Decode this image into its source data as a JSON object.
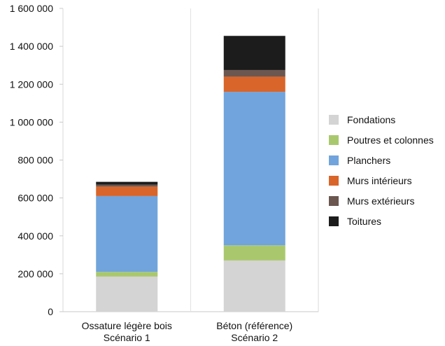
{
  "chart_data": {
    "type": "bar",
    "stacked": true,
    "title": "",
    "xlabel": "",
    "ylabel": "",
    "categories": [
      [
        "Ossature légère bois",
        "Scénario 1"
      ],
      [
        "Béton (référence)",
        "Scénario 2"
      ]
    ],
    "y_ticks": [
      {
        "value": 0,
        "label": "0"
      },
      {
        "value": 200000,
        "label": "200 000"
      },
      {
        "value": 400000,
        "label": "400 000"
      },
      {
        "value": 600000,
        "label": "600 000"
      },
      {
        "value": 800000,
        "label": "800 000"
      },
      {
        "value": 1000000,
        "label": "1 000 000"
      },
      {
        "value": 1200000,
        "label": "1 200 000"
      },
      {
        "value": 1400000,
        "label": "1 400 000"
      },
      {
        "value": 1600000,
        "label": "1 600 000"
      }
    ],
    "ylim": [
      0,
      1600000
    ],
    "grid": "vertical category separators",
    "legend_position": "right",
    "series": [
      {
        "name": "Fondations",
        "color": "#d4d4d4",
        "values": [
          185000,
          270000
        ]
      },
      {
        "name": "Poutres et colonnes",
        "color": "#a9c86e",
        "values": [
          25000,
          80000
        ]
      },
      {
        "name": "Planchers",
        "color": "#71a4dc",
        "values": [
          400000,
          810000
        ]
      },
      {
        "name": "Murs intérieurs",
        "color": "#d9652a",
        "values": [
          50000,
          80000
        ]
      },
      {
        "name": "Murs extérieurs",
        "color": "#6b5750",
        "values": [
          10000,
          35000
        ]
      },
      {
        "name": "Toitures",
        "color": "#1c1c1c",
        "values": [
          15000,
          180000
        ]
      }
    ]
  }
}
